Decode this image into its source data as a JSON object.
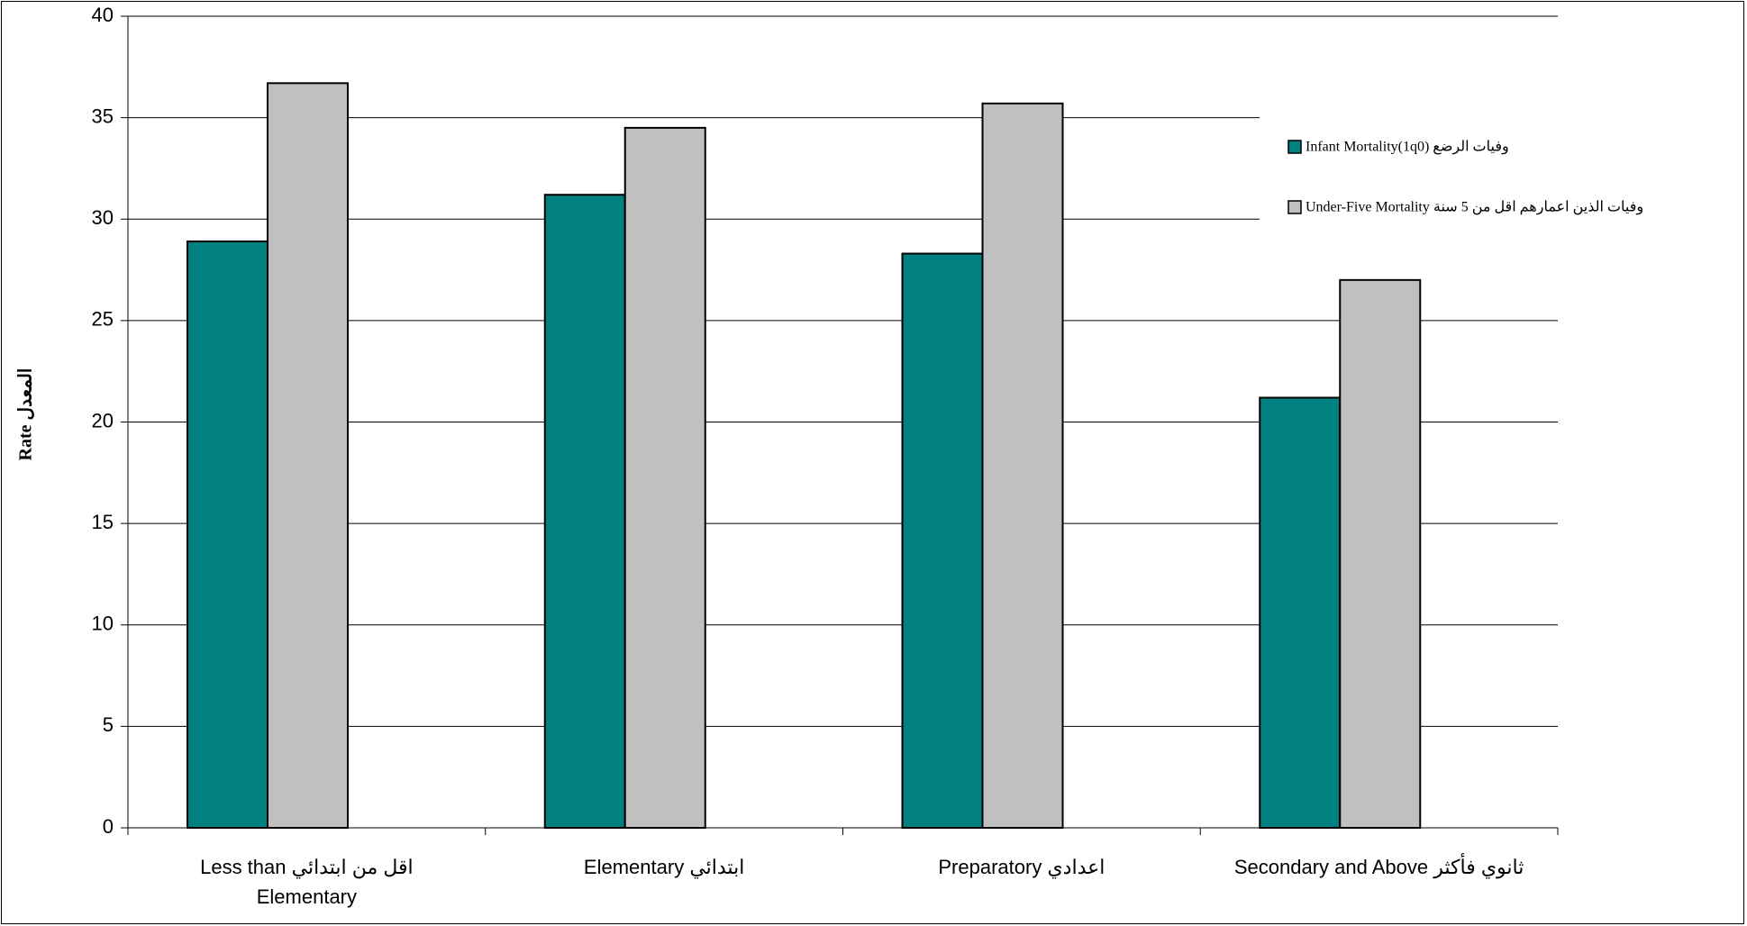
{
  "chart_data": {
    "type": "bar",
    "title": "",
    "xlabel": "",
    "ylabel": "Rate المعدل",
    "ylim": [
      0,
      40
    ],
    "yticks": [
      0,
      5,
      10,
      15,
      20,
      25,
      30,
      35,
      40
    ],
    "grid": true,
    "legend_position": "right",
    "categories": [
      [
        "Less than اقل من ابتدائي",
        "Elementary"
      ],
      [
        "Elementary ابتدائي"
      ],
      [
        "Preparatory اعدادي"
      ],
      [
        "Secondary and Above ثانوي فأكثر"
      ]
    ],
    "series": [
      {
        "name": "Infant Mortality(1q0) وفيات الرضع",
        "color": "#008080",
        "values": [
          28.9,
          31.2,
          28.3,
          21.2
        ]
      },
      {
        "name": "Under-Five Mortality وفيات الذين اعمارهم اقل من 5 سنة",
        "color": "#c0c0c0",
        "values": [
          36.7,
          34.5,
          35.7,
          27.0
        ]
      }
    ]
  }
}
